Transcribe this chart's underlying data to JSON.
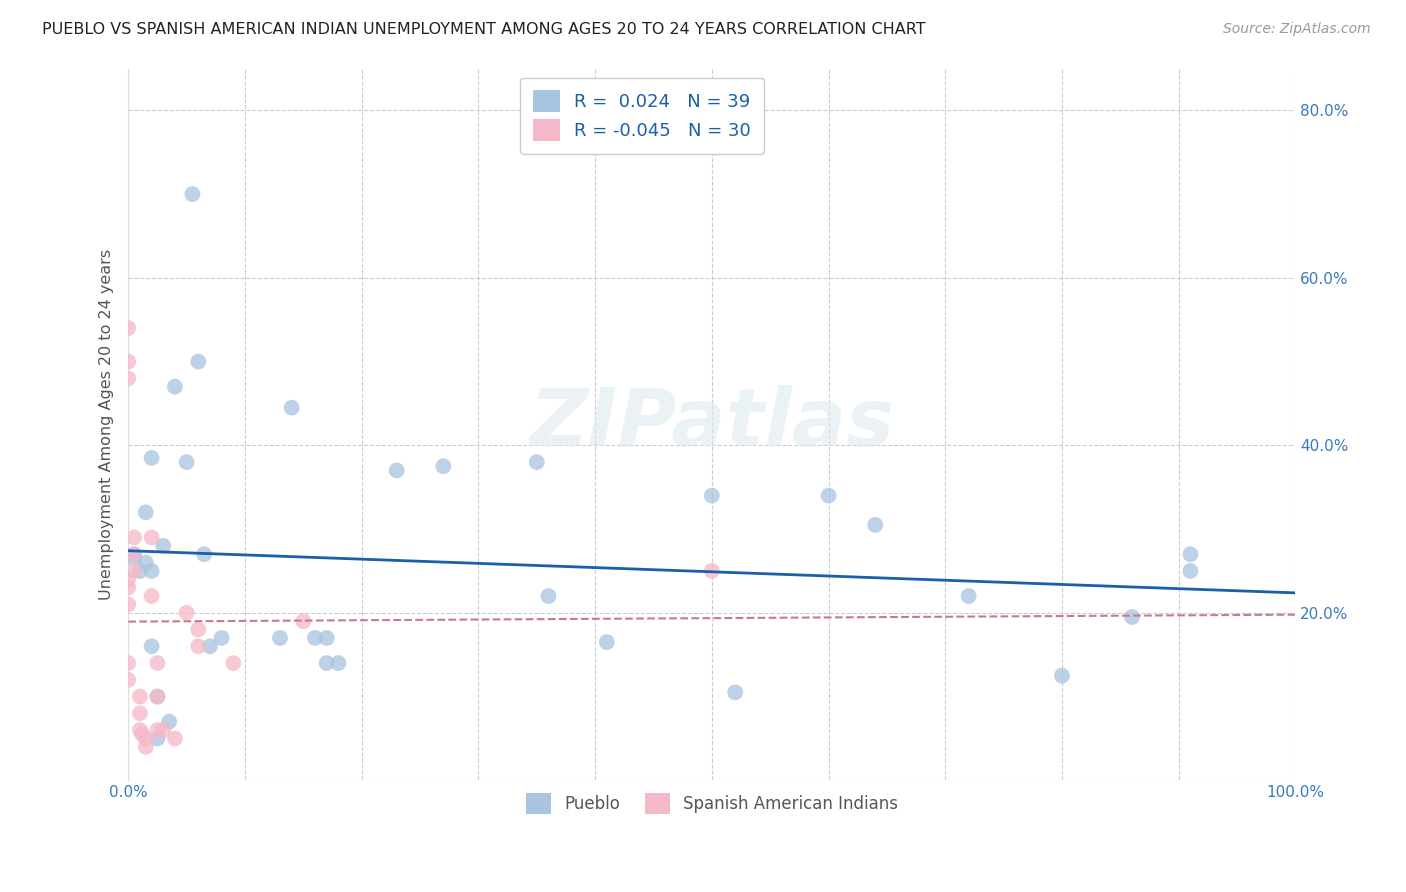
{
  "title": "PUEBLO VS SPANISH AMERICAN INDIAN UNEMPLOYMENT AMONG AGES 20 TO 24 YEARS CORRELATION CHART",
  "source": "Source: ZipAtlas.com",
  "ylabel": "Unemployment Among Ages 20 to 24 years",
  "xlim": [
    0,
    1.0
  ],
  "ylim": [
    0,
    0.85
  ],
  "xticks": [
    0.0,
    0.1,
    0.2,
    0.3,
    0.4,
    0.5,
    0.6,
    0.7,
    0.8,
    0.9,
    1.0
  ],
  "xticklabels": [
    "0.0%",
    "",
    "",
    "",
    "",
    "",
    "",
    "",
    "",
    "",
    "100.0%"
  ],
  "yticks": [
    0.0,
    0.2,
    0.4,
    0.6,
    0.8
  ],
  "yticklabels": [
    "",
    "20.0%",
    "40.0%",
    "60.0%",
    "80.0%"
  ],
  "pueblo_R": 0.024,
  "pueblo_N": 39,
  "spanish_R": -0.045,
  "spanish_N": 30,
  "pueblo_color": "#a8c4e0",
  "spanish_color": "#f4b8c8",
  "pueblo_line_color": "#1a5fa8",
  "spanish_line_color": "#c87890",
  "watermark": "ZIPatlas",
  "pueblo_x": [
    0.005,
    0.005,
    0.01,
    0.015,
    0.015,
    0.02,
    0.02,
    0.025,
    0.025,
    0.03,
    0.035,
    0.04,
    0.055,
    0.06,
    0.065,
    0.07,
    0.08,
    0.13,
    0.14,
    0.16,
    0.17,
    0.17,
    0.18,
    0.23,
    0.27,
    0.35,
    0.36,
    0.41,
    0.5,
    0.52,
    0.6,
    0.64,
    0.72,
    0.8,
    0.86,
    0.91,
    0.91,
    0.02,
    0.05
  ],
  "pueblo_y": [
    0.27,
    0.265,
    0.25,
    0.32,
    0.26,
    0.385,
    0.25,
    0.05,
    0.1,
    0.28,
    0.07,
    0.47,
    0.7,
    0.5,
    0.27,
    0.16,
    0.17,
    0.17,
    0.445,
    0.17,
    0.17,
    0.14,
    0.14,
    0.37,
    0.375,
    0.38,
    0.22,
    0.165,
    0.34,
    0.105,
    0.34,
    0.305,
    0.22,
    0.125,
    0.195,
    0.27,
    0.25,
    0.16,
    0.38
  ],
  "spanish_x": [
    0.0,
    0.0,
    0.0,
    0.0,
    0.0,
    0.0,
    0.0,
    0.0,
    0.005,
    0.005,
    0.005,
    0.01,
    0.01,
    0.01,
    0.012,
    0.015,
    0.015,
    0.02,
    0.02,
    0.025,
    0.025,
    0.025,
    0.03,
    0.04,
    0.05,
    0.06,
    0.06,
    0.09,
    0.15,
    0.5
  ],
  "spanish_y": [
    0.54,
    0.5,
    0.48,
    0.24,
    0.23,
    0.21,
    0.14,
    0.12,
    0.29,
    0.27,
    0.25,
    0.1,
    0.08,
    0.06,
    0.055,
    0.05,
    0.04,
    0.29,
    0.22,
    0.14,
    0.1,
    0.06,
    0.06,
    0.05,
    0.2,
    0.18,
    0.16,
    0.14,
    0.19,
    0.25
  ]
}
